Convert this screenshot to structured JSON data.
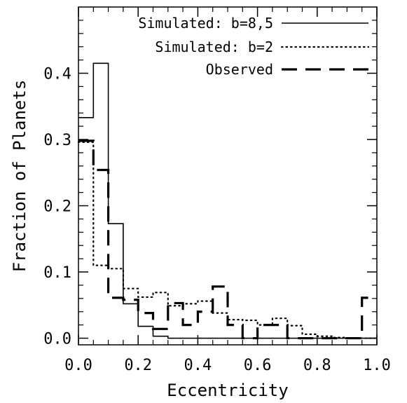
{
  "chart_data": {
    "type": "histogram-step",
    "title": "",
    "xlabel": "Eccentricity",
    "ylabel": "Fraction of Planets",
    "xlim": [
      0.0,
      1.0
    ],
    "ylim": [
      -0.01,
      0.5
    ],
    "x_ticks": [
      {
        "value": 0.0,
        "label": "0.0"
      },
      {
        "value": 0.2,
        "label": "0.2"
      },
      {
        "value": 0.4,
        "label": "0.4"
      },
      {
        "value": 0.6,
        "label": "0.6"
      },
      {
        "value": 0.8,
        "label": "0.8"
      },
      {
        "value": 1.0,
        "label": "1.0"
      }
    ],
    "y_ticks": [
      {
        "value": 0.0,
        "label": "0.0"
      },
      {
        "value": 0.1,
        "label": "0.1"
      },
      {
        "value": 0.2,
        "label": "0.2"
      },
      {
        "value": 0.3,
        "label": "0.3"
      },
      {
        "value": 0.4,
        "label": "0.4"
      }
    ],
    "grid": false,
    "legend_position": "top-right",
    "bin_edges": [
      0.0,
      0.05,
      0.1,
      0.15,
      0.2,
      0.25,
      0.3,
      0.35,
      0.4,
      0.45,
      0.5,
      0.55,
      0.6,
      0.65,
      0.7,
      0.75,
      0.8,
      0.85,
      0.9,
      0.95,
      1.0
    ],
    "series": [
      {
        "name": "Simulated: b=8,5",
        "style": "solid",
        "color": "#000000",
        "values": [
          0.333,
          0.415,
          0.173,
          0.052,
          0.018,
          0.003,
          0,
          0,
          0,
          0,
          0,
          0,
          0,
          0,
          0,
          0,
          0,
          0,
          0,
          0
        ]
      },
      {
        "name": "Simulated: b=2",
        "style": "dotted",
        "color": "#000000",
        "values": [
          0.296,
          0.11,
          0.105,
          0.075,
          0.062,
          0.069,
          0.049,
          0.052,
          0.056,
          0.038,
          0.028,
          0.027,
          0.02,
          0.03,
          0.019,
          0.006,
          0.003,
          0.001,
          0,
          0
        ]
      },
      {
        "name": "Observed",
        "style": "dashed",
        "color": "#000000",
        "values": [
          0.298,
          0.254,
          0.061,
          0.058,
          0.038,
          0.014,
          0.053,
          0.02,
          0.04,
          0.078,
          0.02,
          0,
          0.02,
          0.02,
          0,
          0,
          0,
          0,
          0,
          0.061
        ]
      }
    ]
  }
}
